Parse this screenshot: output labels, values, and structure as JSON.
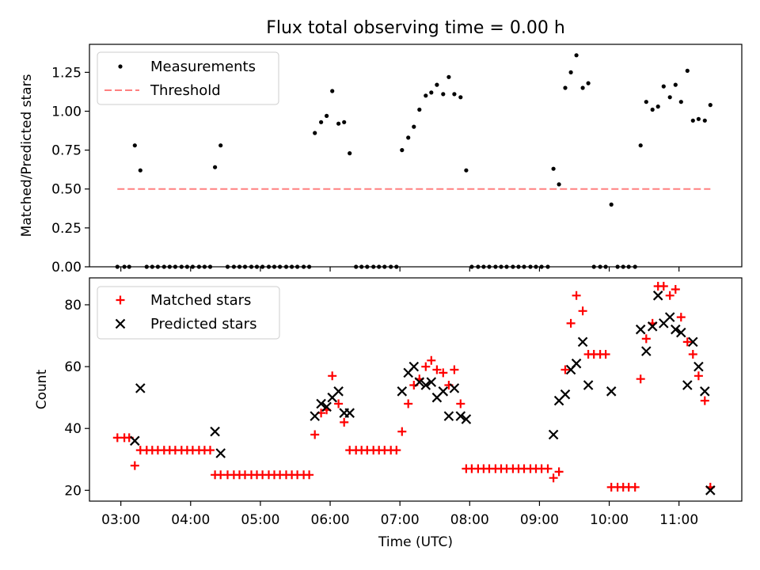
{
  "figure": {
    "title": "Flux total observing time = 0.00 h"
  },
  "chart_data": [
    {
      "type": "scatter",
      "panel": "top",
      "ylabel": "Matched/Predicted stars",
      "xlabel": "",
      "x_unit": "hours UTC (decimal)",
      "xlim": [
        2.55,
        11.9
      ],
      "ylim": [
        0,
        1.43
      ],
      "yticks": [
        0.0,
        0.25,
        0.5,
        0.75,
        1.0,
        1.25
      ],
      "ytick_labels": [
        "0.00",
        "0.25",
        "0.50",
        "0.75",
        "1.00",
        "1.25"
      ],
      "legend_position": "upper-left",
      "series": [
        {
          "name": "Measurements",
          "marker": "dot",
          "color": "#000000",
          "x": [
            2.95,
            3.05,
            3.12,
            3.2,
            3.28,
            3.37,
            3.45,
            3.53,
            3.62,
            3.7,
            3.78,
            3.87,
            3.95,
            4.03,
            4.12,
            4.2,
            4.28,
            4.35,
            4.43,
            4.53,
            4.62,
            4.7,
            4.78,
            4.87,
            4.95,
            5.03,
            5.12,
            5.2,
            5.28,
            5.37,
            5.45,
            5.53,
            5.62,
            5.7,
            5.78,
            5.87,
            5.95,
            6.03,
            6.12,
            6.2,
            6.28,
            6.37,
            6.45,
            6.53,
            6.62,
            6.7,
            6.78,
            6.87,
            6.95,
            7.03,
            7.12,
            7.2,
            7.28,
            7.37,
            7.45,
            7.53,
            7.62,
            7.7,
            7.78,
            7.87,
            7.95,
            8.03,
            8.12,
            8.2,
            8.28,
            8.37,
            8.45,
            8.53,
            8.62,
            8.7,
            8.78,
            8.87,
            8.95,
            9.03,
            9.12,
            9.2,
            9.28,
            9.37,
            9.45,
            9.53,
            9.62,
            9.7,
            9.78,
            9.87,
            9.95,
            10.03,
            10.12,
            10.2,
            10.28,
            10.37,
            10.45,
            10.53,
            10.62,
            10.7,
            10.78,
            10.87,
            10.95,
            11.03,
            11.12,
            11.2,
            11.28,
            11.37,
            11.45
          ],
          "y": [
            0,
            0,
            0,
            0.78,
            0.62,
            0,
            0,
            0,
            0,
            0,
            0,
            0,
            0,
            0,
            0,
            0,
            0,
            0.64,
            0.78,
            0,
            0,
            0,
            0,
            0,
            0,
            0,
            0,
            0,
            0,
            0,
            0,
            0,
            0,
            0,
            0.86,
            0.93,
            0.97,
            1.13,
            0.92,
            0.93,
            0.73,
            0,
            0,
            0,
            0,
            0,
            0,
            0,
            0,
            0.75,
            0.83,
            0.9,
            1.01,
            1.1,
            1.12,
            1.17,
            1.11,
            1.22,
            1.11,
            1.09,
            0.62,
            0,
            0,
            0,
            0,
            0,
            0,
            0,
            0,
            0,
            0,
            0,
            0,
            0,
            0,
            0.63,
            0.53,
            1.15,
            1.25,
            1.36,
            1.15,
            1.18,
            0,
            0,
            0,
            0.4,
            0,
            0,
            0,
            0,
            0.78,
            1.06,
            1.01,
            1.03,
            1.16,
            1.09,
            1.17,
            1.06,
            1.26,
            0.94,
            0.95,
            0.94,
            1.04
          ]
        },
        {
          "name": "Threshold",
          "line": "dashed",
          "color": "#ff8080",
          "x": [
            2.95,
            11.45
          ],
          "y": [
            0.5,
            0.5
          ]
        }
      ]
    },
    {
      "type": "scatter",
      "panel": "bottom",
      "ylabel": "Count",
      "xlabel": "Time (UTC)",
      "xlim": [
        2.55,
        11.9
      ],
      "ylim": [
        16.5,
        88.7
      ],
      "yticks": [
        20,
        40,
        60,
        80
      ],
      "ytick_labels": [
        "20",
        "40",
        "60",
        "80"
      ],
      "xticks": [
        3,
        4,
        5,
        6,
        7,
        8,
        9,
        10,
        11
      ],
      "xtick_labels": [
        "03:00",
        "04:00",
        "05:00",
        "06:00",
        "07:00",
        "08:00",
        "09:00",
        "10:00",
        "11:00"
      ],
      "legend_position": "upper-left",
      "series": [
        {
          "name": "Matched stars",
          "marker": "plus",
          "color": "#ff0000",
          "x": [
            2.95,
            3.05,
            3.12,
            3.2,
            3.28,
            3.37,
            3.45,
            3.53,
            3.62,
            3.7,
            3.78,
            3.87,
            3.95,
            4.03,
            4.12,
            4.2,
            4.28,
            4.35,
            4.43,
            4.53,
            4.62,
            4.7,
            4.78,
            4.87,
            4.95,
            5.03,
            5.12,
            5.2,
            5.28,
            5.37,
            5.45,
            5.53,
            5.62,
            5.7,
            5.78,
            5.87,
            5.95,
            6.03,
            6.12,
            6.2,
            6.28,
            6.37,
            6.45,
            6.53,
            6.62,
            6.7,
            6.78,
            6.87,
            6.95,
            7.03,
            7.12,
            7.2,
            7.28,
            7.37,
            7.45,
            7.53,
            7.62,
            7.7,
            7.78,
            7.87,
            7.95,
            8.03,
            8.12,
            8.2,
            8.28,
            8.37,
            8.45,
            8.53,
            8.62,
            8.7,
            8.78,
            8.87,
            8.95,
            9.03,
            9.12,
            9.2,
            9.28,
            9.37,
            9.45,
            9.53,
            9.62,
            9.7,
            9.78,
            9.87,
            9.95,
            10.03,
            10.12,
            10.2,
            10.28,
            10.37,
            10.45,
            10.53,
            10.62,
            10.7,
            10.78,
            10.87,
            10.95,
            11.03,
            11.12,
            11.2,
            11.28,
            11.37,
            11.45
          ],
          "y": [
            37,
            37,
            37,
            28,
            33,
            33,
            33,
            33,
            33,
            33,
            33,
            33,
            33,
            33,
            33,
            33,
            33,
            25,
            25,
            25,
            25,
            25,
            25,
            25,
            25,
            25,
            25,
            25,
            25,
            25,
            25,
            25,
            25,
            25,
            38,
            45,
            46,
            57,
            48,
            42,
            33,
            33,
            33,
            33,
            33,
            33,
            33,
            33,
            33,
            39,
            48,
            54,
            56,
            60,
            62,
            59,
            58,
            54,
            59,
            48,
            27,
            27,
            27,
            27,
            27,
            27,
            27,
            27,
            27,
            27,
            27,
            27,
            27,
            27,
            27,
            24,
            26,
            59,
            74,
            83,
            78,
            64,
            64,
            64,
            64,
            21,
            21,
            21,
            21,
            21,
            56,
            69,
            74,
            86,
            86,
            83,
            85,
            76,
            68,
            64,
            57,
            49,
            21
          ]
        },
        {
          "name": "Predicted stars",
          "marker": "x",
          "color": "#000000",
          "x": [
            3.2,
            3.28,
            4.35,
            4.43,
            5.78,
            5.87,
            5.95,
            6.03,
            6.12,
            6.2,
            6.28,
            7.03,
            7.12,
            7.2,
            7.28,
            7.37,
            7.45,
            7.53,
            7.62,
            7.7,
            7.78,
            7.87,
            7.95,
            9.2,
            9.28,
            9.37,
            9.45,
            9.53,
            9.62,
            9.7,
            10.03,
            10.45,
            10.53,
            10.62,
            10.7,
            10.78,
            10.87,
            10.95,
            11.03,
            11.12,
            11.2,
            11.28,
            11.37,
            11.45
          ],
          "y": [
            36,
            53,
            39,
            32,
            44,
            48,
            47,
            50,
            52,
            45,
            45,
            52,
            58,
            60,
            55,
            54,
            55,
            50,
            52,
            44,
            53,
            44,
            43,
            38,
            49,
            51,
            59,
            61,
            68,
            54,
            52,
            72,
            65,
            73,
            83,
            74,
            76,
            72,
            71,
            54,
            68,
            60,
            52,
            20
          ]
        }
      ]
    }
  ]
}
